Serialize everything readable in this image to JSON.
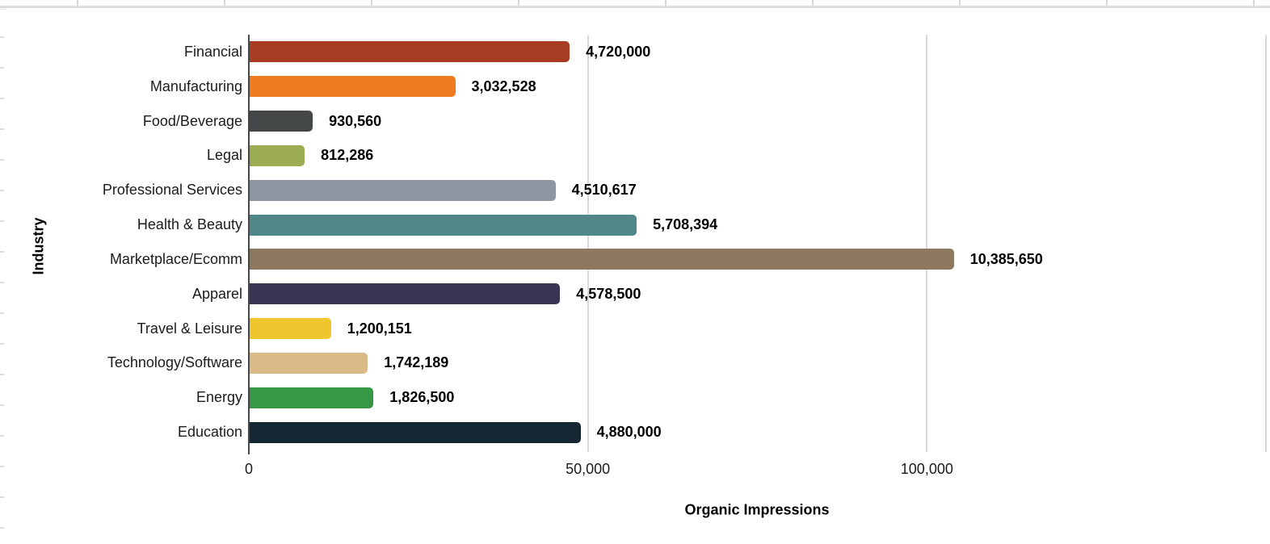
{
  "canvas": {
    "background": "#ffffff",
    "sheet_grid_color": "#dcdcdc",
    "chart_gridline_color": "#d9d9d9",
    "axis_line_color": "#464646"
  },
  "chart_data": {
    "type": "bar",
    "orientation": "horizontal",
    "x_axis_title": "Organic Impressions",
    "y_axis_title": "Industry",
    "grid": "vertical-only",
    "legend": "none",
    "axis_display_max": 150000,
    "bar_value_divisor": 100,
    "x_ticks": [
      {
        "label": "0",
        "pct": 0
      },
      {
        "label": "50,000",
        "pct": 33.333
      },
      {
        "label": "100,000",
        "pct": 66.667
      }
    ],
    "gridline_pcts": [
      33.333,
      66.667,
      100
    ],
    "bars": [
      {
        "category": "Financial",
        "value": 4720000,
        "value_label": "4,720,000",
        "color": "#A83C23"
      },
      {
        "category": "Manufacturing",
        "value": 3032528,
        "value_label": "3,032,528",
        "color": "#F07C21"
      },
      {
        "category": "Food/Beverage",
        "value": 930560,
        "value_label": "930,560",
        "color": "#434747"
      },
      {
        "category": "Legal",
        "value": 812286,
        "value_label": "812,286",
        "color": "#9BAD50"
      },
      {
        "category": "Professional Services",
        "value": 4510617,
        "value_label": "4,510,617",
        "color": "#8F96A3"
      },
      {
        "category": "Health & Beauty",
        "value": 5708394,
        "value_label": "5,708,394",
        "color": "#50878A"
      },
      {
        "category": "Marketplace/Ecomm",
        "value": 10385650,
        "value_label": "10,385,650",
        "color": "#8E7960"
      },
      {
        "category": "Apparel",
        "value": 4578500,
        "value_label": "4,578,500",
        "color": "#3A3554"
      },
      {
        "category": "Travel & Leisure",
        "value": 1200151,
        "value_label": "1,200,151",
        "color": "#EDC72D"
      },
      {
        "category": "Technology/Software",
        "value": 1742189,
        "value_label": "1,742,189",
        "color": "#DABB88"
      },
      {
        "category": "Energy",
        "value": 1826500,
        "value_label": "1,826,500",
        "color": "#359844"
      },
      {
        "category": "Education",
        "value": 4880000,
        "value_label": "4,880,000",
        "color": "#152733"
      }
    ]
  }
}
